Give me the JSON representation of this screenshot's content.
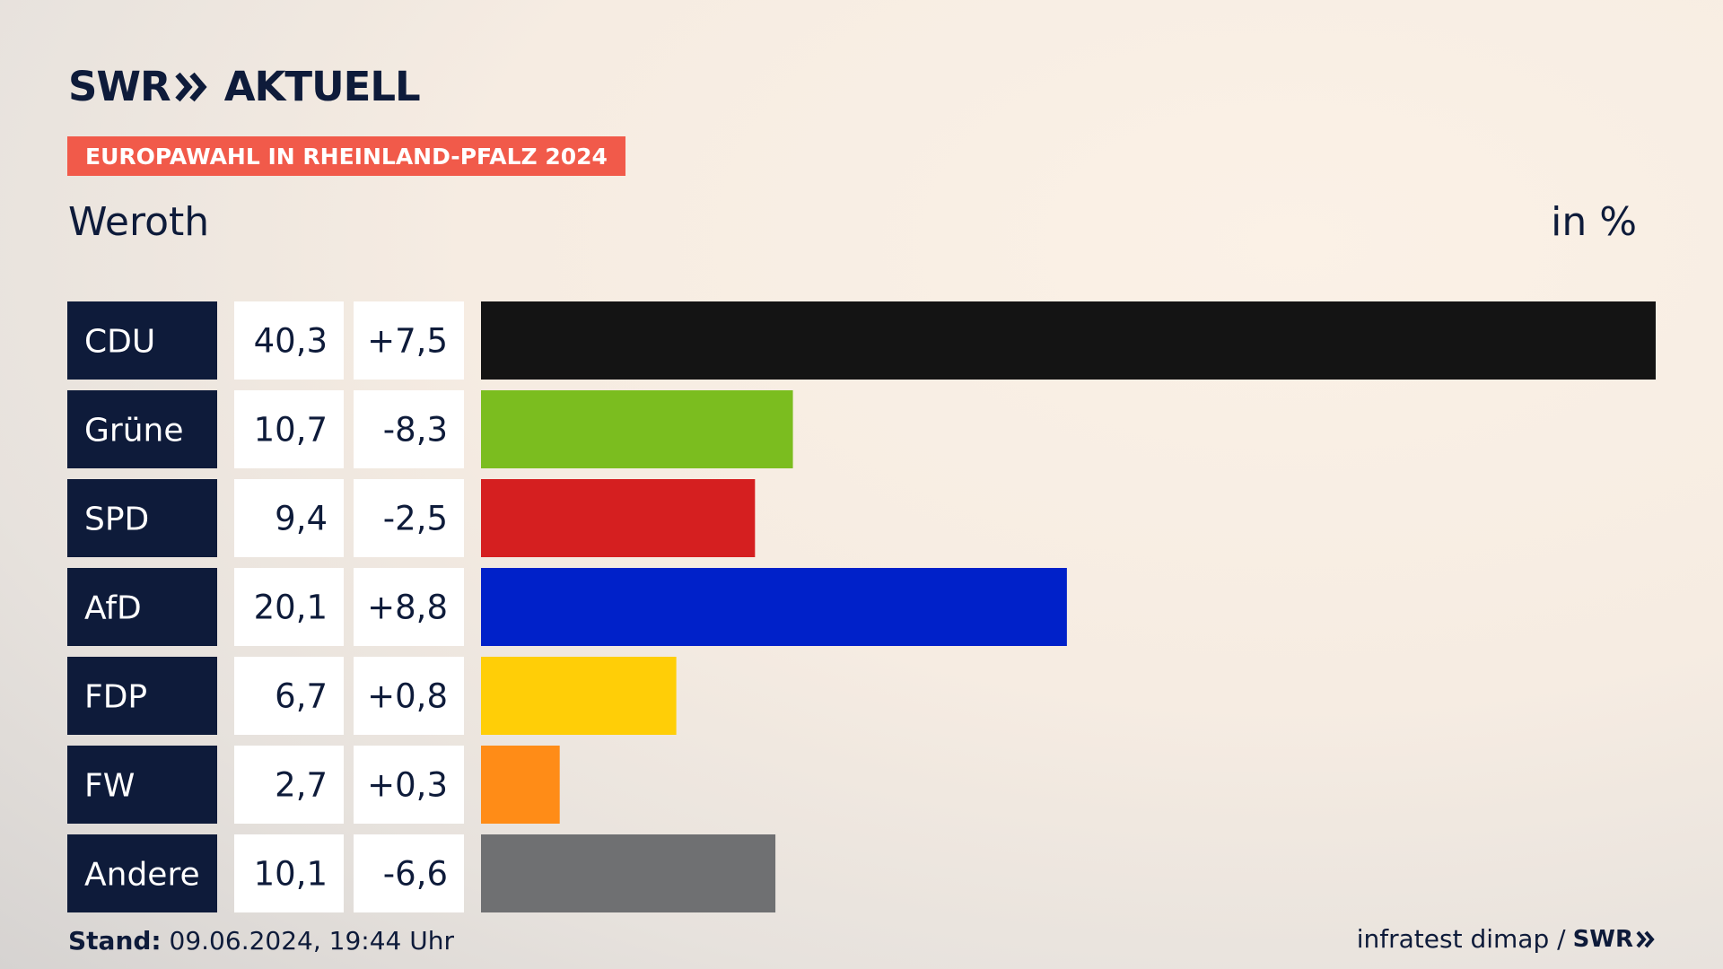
{
  "logo": {
    "brand": "SWR",
    "name": "AKTUELL"
  },
  "topic": "EUROPAWAHL IN RHEINLAND-PFALZ 2024",
  "place": "Weroth",
  "unit": "in %",
  "colors": {
    "label_bg": "#0e1b3a",
    "topic_bg": "#f15a4a"
  },
  "chart_data": {
    "type": "bar",
    "orientation": "horizontal",
    "categories": [
      "CDU",
      "Grüne",
      "SPD",
      "AfD",
      "FDP",
      "FW",
      "Andere"
    ],
    "values": [
      40.3,
      10.7,
      9.4,
      20.1,
      6.7,
      2.7,
      10.1
    ],
    "value_labels": [
      "40,3",
      "10,7",
      "9,4",
      "20,1",
      "6,7",
      "2,7",
      "10,1"
    ],
    "change_labels": [
      "+7,5",
      "-8,3",
      "-2,5",
      "+8,8",
      "+0,8",
      "+0,3",
      "-6,6"
    ],
    "changes": [
      7.5,
      -8.3,
      -2.5,
      8.8,
      0.8,
      0.3,
      -6.6
    ],
    "colors": [
      "#141414",
      "#7bbd1f",
      "#d51f20",
      "#0021c9",
      "#ffce07",
      "#ff8c17",
      "#6f7072"
    ],
    "xlim": [
      0,
      40.3
    ],
    "grid": false,
    "legend": "none"
  },
  "footer": {
    "stand_label": "Stand:",
    "stand_value": "09.06.2024, 19:44 Uhr",
    "source": "infratest dimap /",
    "source_brand": "SWR"
  }
}
